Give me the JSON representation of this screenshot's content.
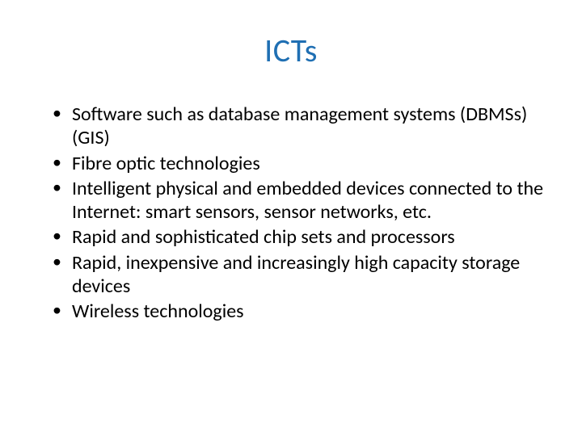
{
  "slide": {
    "title": "ICTs",
    "title_color": "#1f6fb3",
    "title_fontsize": 40,
    "body_fontsize": 24,
    "body_color": "#000000",
    "background_color": "#ffffff",
    "bullets": [
      "Software such as database management systems (DBMSs)  (GIS)",
      "Fibre optic technologies",
      "Intelligent physical and embedded devices connected to the Internet:  smart sensors, sensor networks, etc.",
      "Rapid and sophisticated chip sets and processors",
      "Rapid, inexpensive and increasingly high capacity storage devices",
      "Wireless technologies"
    ]
  }
}
